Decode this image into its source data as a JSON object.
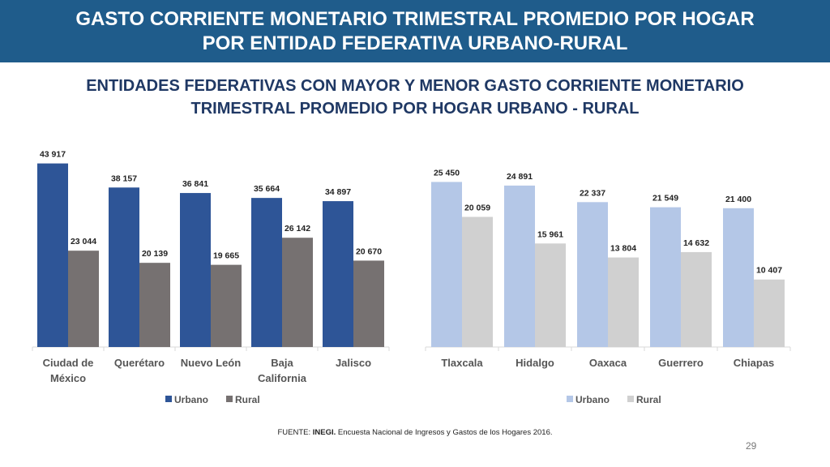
{
  "slide": {
    "title_line1": "GASTO CORRIENTE MONETARIO TRIMESTRAL PROMEDIO POR HOGAR",
    "title_line2": "POR ENTIDAD FEDERATIVA URBANO-RURAL",
    "subtitle_line1": "ENTIDADES FEDERATIVAS CON MAYOR Y MENOR GASTO CORRIENTE MONETARIO",
    "subtitle_line2": "TRIMESTRAL PROMEDIO POR HOGAR URBANO - RURAL",
    "source_prefix": "FUENTE: ",
    "source_org": "INEGI.",
    "source_text": " Encuesta Nacional de Ingresos y Gastos de los Hogares 2016.",
    "page_number": "29"
  },
  "colors": {
    "header_bg": "#1f5c8b",
    "urbano_left": "#2e5597",
    "rural_left": "#767171",
    "urbano_right": "#b4c7e7",
    "rural_right": "#d0d0d0"
  },
  "chart_data": [
    {
      "type": "bar",
      "title": "",
      "categories": [
        [
          "Ciudad de",
          "México"
        ],
        [
          "Querétaro"
        ],
        [
          "Nuevo León"
        ],
        [
          "Baja",
          "California"
        ],
        [
          "Jalisco"
        ]
      ],
      "series": [
        {
          "name": "Urbano",
          "values": [
            43917,
            38157,
            36841,
            35664,
            34897
          ],
          "labels": [
            "43 917",
            "38 157",
            "36 841",
            "35 664",
            "34 897"
          ]
        },
        {
          "name": "Rural",
          "values": [
            23044,
            20139,
            19665,
            26142,
            20670
          ],
          "labels": [
            "23 044",
            "20 139",
            "19 665",
            "26 142",
            "20 670"
          ]
        }
      ],
      "ylim": [
        0,
        45000
      ],
      "legend": "bottom"
    },
    {
      "type": "bar",
      "title": "",
      "categories": [
        [
          "Tlaxcala"
        ],
        [
          "Hidalgo"
        ],
        [
          "Oaxaca"
        ],
        [
          "Guerrero"
        ],
        [
          "Chiapas"
        ]
      ],
      "series": [
        {
          "name": "Urbano",
          "values": [
            25450,
            24891,
            22337,
            21549,
            21400
          ],
          "labels": [
            "25 450",
            "24 891",
            "22 337",
            "21 549",
            "21 400"
          ]
        },
        {
          "name": "Rural",
          "values": [
            20059,
            15961,
            13804,
            14632,
            10407
          ],
          "labels": [
            "20 059",
            "15 961",
            "13 804",
            "14 632",
            "10 407"
          ]
        }
      ],
      "ylim": [
        0,
        29000
      ],
      "legend": "bottom"
    }
  ]
}
